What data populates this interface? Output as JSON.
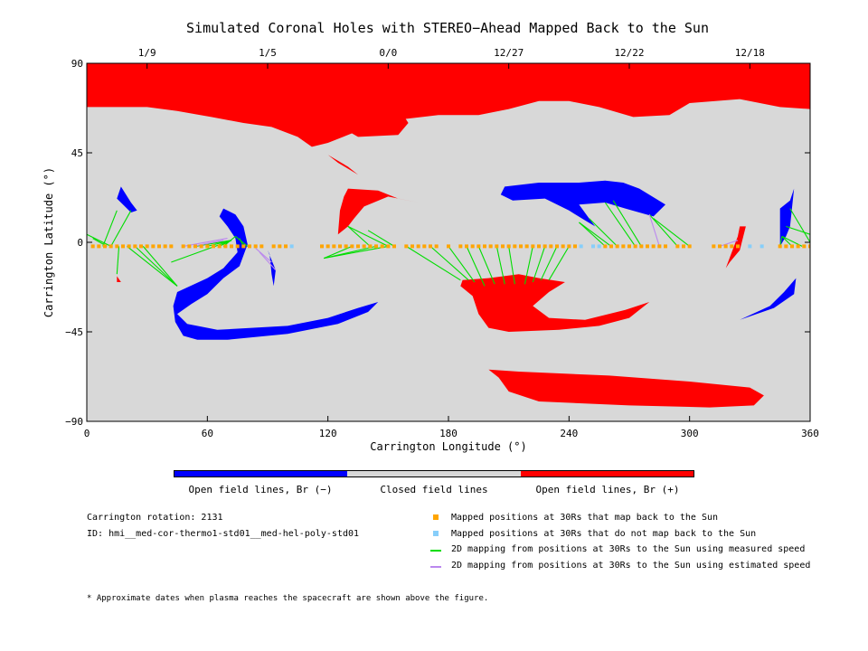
{
  "chart_data": {
    "type": "map",
    "title": "Simulated Coronal Holes with STEREO−Ahead Mapped Back to the Sun",
    "xlabel": "Carrington Longitude (°)",
    "ylabel": "Carrington Latitude (°)",
    "xlim": [
      0,
      360
    ],
    "ylim": [
      -90,
      90
    ],
    "x_ticks": [
      0,
      60,
      120,
      180,
      240,
      300,
      360
    ],
    "y_ticks": [
      90,
      45,
      0,
      -45,
      -90
    ],
    "y_tick_labels": [
      "90",
      "45",
      "0",
      "−45",
      "−90"
    ],
    "top_date_ticks": [
      {
        "lon": 30,
        "label": "1/9"
      },
      {
        "lon": 90,
        "label": "1/5"
      },
      {
        "lon": 150,
        "label": "0/0"
      },
      {
        "lon": 210,
        "label": "12/27"
      },
      {
        "lon": 270,
        "label": "12/22"
      },
      {
        "lon": 330,
        "label": "12/18"
      }
    ],
    "colors": {
      "closed": "#d8d8d8",
      "open_negative": "#0000ff",
      "open_positive": "#ff0000",
      "mapped_back": "#ffa500",
      "not_mapped_back": "#87cefa",
      "measured_speed": "#00dd00",
      "estimated_speed": "#bb88ee"
    },
    "regions": {
      "positive": [
        [
          [
            0,
            90
          ],
          [
            360,
            90
          ],
          [
            360,
            67
          ],
          [
            345,
            68
          ],
          [
            325,
            72
          ],
          [
            300,
            70
          ],
          [
            290,
            64
          ],
          [
            272,
            63
          ],
          [
            255,
            68
          ],
          [
            240,
            71
          ],
          [
            225,
            71
          ],
          [
            210,
            67
          ],
          [
            195,
            64
          ],
          [
            175,
            64
          ],
          [
            150,
            61
          ],
          [
            135,
            56
          ],
          [
            120,
            50
          ],
          [
            112,
            48
          ],
          [
            105,
            53
          ],
          [
            92,
            58
          ],
          [
            78,
            60
          ],
          [
            62,
            63
          ],
          [
            45,
            66
          ],
          [
            30,
            68
          ],
          [
            10,
            68
          ],
          [
            0,
            68
          ]
        ],
        [
          [
            305,
            90
          ],
          [
            360,
            90
          ],
          [
            360,
            70
          ],
          [
            350,
            72
          ],
          [
            335,
            75
          ],
          [
            315,
            78
          ]
        ],
        [
          [
            135,
            53
          ],
          [
            155,
            54
          ],
          [
            160,
            60
          ],
          [
            155,
            68
          ],
          [
            135,
            71
          ],
          [
            125,
            67
          ],
          [
            123,
            60
          ]
        ],
        [
          [
            130,
            27
          ],
          [
            145,
            26
          ],
          [
            155,
            22
          ],
          [
            165,
            20
          ],
          [
            150,
            23
          ],
          [
            138,
            18
          ],
          [
            133,
            12
          ],
          [
            130,
            8
          ],
          [
            125,
            4
          ],
          [
            126,
            16
          ],
          [
            128,
            23
          ]
        ],
        [
          [
            120,
            44
          ],
          [
            130,
            38
          ],
          [
            135,
            34
          ],
          [
            125,
            40
          ]
        ],
        [
          [
            187,
            -19
          ],
          [
            200,
            -18
          ],
          [
            215,
            -16
          ],
          [
            225,
            -18
          ],
          [
            238,
            -20
          ],
          [
            230,
            -25
          ],
          [
            222,
            -32
          ],
          [
            230,
            -38
          ],
          [
            248,
            -39
          ],
          [
            268,
            -34
          ],
          [
            280,
            -30
          ],
          [
            270,
            -38
          ],
          [
            255,
            -42
          ],
          [
            235,
            -44
          ],
          [
            210,
            -45
          ],
          [
            200,
            -43
          ],
          [
            195,
            -36
          ],
          [
            192,
            -27
          ],
          [
            186,
            -22
          ]
        ],
        [
          [
            325,
            8
          ],
          [
            328,
            8
          ],
          [
            325,
            -4
          ],
          [
            320,
            -10
          ],
          [
            318,
            -13
          ],
          [
            321,
            -5
          ],
          [
            324,
            3
          ]
        ],
        [
          [
            200,
            -64
          ],
          [
            215,
            -65
          ],
          [
            260,
            -67
          ],
          [
            300,
            -70
          ],
          [
            330,
            -73
          ],
          [
            337,
            -77
          ],
          [
            332,
            -82
          ],
          [
            310,
            -83
          ],
          [
            270,
            -82
          ],
          [
            225,
            -80
          ],
          [
            210,
            -75
          ],
          [
            205,
            -68
          ]
        ],
        [
          [
            15,
            -17
          ],
          [
            17,
            -20
          ],
          [
            15,
            -20
          ]
        ]
      ],
      "negative": [
        [
          [
            45,
            -25
          ],
          [
            60,
            -18
          ],
          [
            68,
            -13
          ],
          [
            75,
            -5
          ],
          [
            74,
            2
          ],
          [
            70,
            8
          ],
          [
            66,
            13
          ],
          [
            68,
            17
          ],
          [
            74,
            14
          ],
          [
            78,
            8
          ],
          [
            80,
            -1
          ],
          [
            76,
            -12
          ],
          [
            68,
            -18
          ],
          [
            60,
            -26
          ],
          [
            52,
            -31
          ],
          [
            45,
            -36
          ],
          [
            50,
            -41
          ],
          [
            65,
            -44
          ],
          [
            100,
            -42
          ],
          [
            120,
            -38
          ],
          [
            135,
            -33
          ],
          [
            145,
            -30
          ],
          [
            140,
            -35
          ],
          [
            125,
            -41
          ],
          [
            100,
            -46
          ],
          [
            70,
            -49
          ],
          [
            55,
            -49
          ],
          [
            48,
            -47
          ],
          [
            44,
            -40
          ],
          [
            43,
            -32
          ]
        ],
        [
          [
            208,
            28
          ],
          [
            225,
            30
          ],
          [
            245,
            30
          ],
          [
            258,
            31
          ],
          [
            267,
            30
          ],
          [
            275,
            27
          ],
          [
            288,
            19
          ],
          [
            282,
            13
          ],
          [
            275,
            15
          ],
          [
            268,
            17
          ],
          [
            258,
            20
          ],
          [
            245,
            19
          ],
          [
            250,
            12
          ],
          [
            253,
            8
          ],
          [
            248,
            11
          ],
          [
            240,
            16
          ],
          [
            228,
            22
          ],
          [
            212,
            21
          ],
          [
            206,
            24
          ]
        ],
        [
          [
            17,
            28
          ],
          [
            22,
            20
          ],
          [
            25,
            16
          ],
          [
            22,
            15
          ],
          [
            15,
            22
          ]
        ],
        [
          [
            345,
            17
          ],
          [
            350,
            21
          ],
          [
            352,
            27
          ],
          [
            350,
            8
          ],
          [
            348,
            3
          ],
          [
            345,
            -2
          ],
          [
            345,
            9
          ]
        ],
        [
          [
            325,
            -39
          ],
          [
            342,
            -33
          ],
          [
            352,
            -26
          ],
          [
            353,
            -18
          ],
          [
            347,
            -25
          ],
          [
            340,
            -32
          ],
          [
            327,
            -38
          ]
        ],
        [
          [
            90,
            -4
          ],
          [
            94,
            -14
          ],
          [
            93,
            -22
          ],
          [
            92,
            -16
          ],
          [
            91,
            -6
          ]
        ]
      ]
    },
    "mapped_points": [
      3,
      6,
      9,
      12,
      15,
      18,
      21,
      24,
      27,
      30,
      33,
      36,
      39,
      42,
      48,
      51,
      54,
      57,
      60,
      63,
      66,
      69,
      72,
      75,
      78,
      81,
      84,
      87,
      93,
      96,
      99,
      117,
      120,
      123,
      126,
      129,
      132,
      135,
      138,
      141,
      144,
      147,
      150,
      153,
      159,
      162,
      165,
      168,
      171,
      174,
      180,
      186,
      189,
      192,
      195,
      198,
      201,
      204,
      207,
      210,
      213,
      216,
      219,
      222,
      225,
      228,
      231,
      234,
      237,
      240,
      243,
      258,
      261,
      264,
      267,
      270,
      273,
      276,
      279,
      282,
      285,
      288,
      294,
      297,
      300,
      312,
      315,
      318,
      321,
      324,
      345,
      348,
      351,
      354,
      357,
      360
    ],
    "not_mapped_points": [
      102,
      246,
      252,
      255,
      330,
      336
    ],
    "measured_lines": [
      [
        [
          3,
          2
        ],
        [
          10,
          -2
        ]
      ],
      [
        [
          0,
          4
        ],
        [
          12,
          -2
        ]
      ],
      [
        [
          15,
          16
        ],
        [
          8,
          -2
        ]
      ],
      [
        [
          22,
          16
        ],
        [
          12,
          -2
        ]
      ],
      [
        [
          15,
          -16
        ],
        [
          16,
          -2
        ]
      ],
      [
        [
          45,
          -22
        ],
        [
          24,
          -2
        ]
      ],
      [
        [
          45,
          -22
        ],
        [
          28,
          -2
        ]
      ],
      [
        [
          45,
          -22
        ],
        [
          20,
          -2
        ]
      ],
      [
        [
          72,
          1
        ],
        [
          54,
          -2
        ]
      ],
      [
        [
          72,
          1
        ],
        [
          60,
          -2
        ]
      ],
      [
        [
          72,
          1
        ],
        [
          66,
          -2
        ]
      ],
      [
        [
          72,
          1
        ],
        [
          42,
          -10
        ]
      ],
      [
        [
          74,
          3
        ],
        [
          68,
          -2
        ]
      ],
      [
        [
          74,
          3
        ],
        [
          80,
          -2
        ]
      ],
      [
        [
          76,
          2
        ],
        [
          78,
          -2
        ]
      ],
      [
        [
          118,
          -8
        ],
        [
          132,
          -2
        ]
      ],
      [
        [
          118,
          -8
        ],
        [
          144,
          -2
        ]
      ],
      [
        [
          118,
          -8
        ],
        [
          150,
          -2
        ]
      ],
      [
        [
          130,
          8
        ],
        [
          141,
          -2
        ]
      ],
      [
        [
          130,
          8
        ],
        [
          150,
          -2
        ]
      ],
      [
        [
          140,
          6
        ],
        [
          153,
          -2
        ]
      ],
      [
        [
          186,
          -19
        ],
        [
          159,
          -2
        ]
      ],
      [
        [
          190,
          -19
        ],
        [
          171,
          -2
        ]
      ],
      [
        [
          193,
          -20
        ],
        [
          180,
          -2
        ]
      ],
      [
        [
          198,
          -22
        ],
        [
          189,
          -2
        ]
      ],
      [
        [
          203,
          -21
        ],
        [
          195,
          -2
        ]
      ],
      [
        [
          208,
          -21
        ],
        [
          204,
          -2
        ]
      ],
      [
        [
          213,
          -21
        ],
        [
          210,
          -2
        ]
      ],
      [
        [
          218,
          -21
        ],
        [
          222,
          -2
        ]
      ],
      [
        [
          222,
          -20
        ],
        [
          228,
          -2
        ]
      ],
      [
        [
          226,
          -19
        ],
        [
          234,
          -2
        ]
      ],
      [
        [
          230,
          -19
        ],
        [
          240,
          -2
        ]
      ],
      [
        [
          245,
          10
        ],
        [
          258,
          -2
        ]
      ],
      [
        [
          245,
          10
        ],
        [
          261,
          -2
        ]
      ],
      [
        [
          250,
          12
        ],
        [
          264,
          -2
        ]
      ],
      [
        [
          258,
          20
        ],
        [
          273,
          -2
        ]
      ],
      [
        [
          262,
          21
        ],
        [
          276,
          -2
        ]
      ],
      [
        [
          280,
          14
        ],
        [
          294,
          -2
        ]
      ],
      [
        [
          282,
          12
        ],
        [
          300,
          -2
        ]
      ],
      [
        [
          346,
          3
        ],
        [
          345,
          -2
        ]
      ],
      [
        [
          346,
          3
        ],
        [
          351,
          -2
        ]
      ],
      [
        [
          346,
          3
        ],
        [
          356,
          -2
        ]
      ],
      [
        [
          348,
          8
        ],
        [
          360,
          4
        ]
      ],
      [
        [
          350,
          17
        ],
        [
          360,
          0
        ]
      ]
    ],
    "estimated_lines": [
      [
        [
          70,
          2
        ],
        [
          48,
          -2
        ]
      ],
      [
        [
          68,
          1
        ],
        [
          53,
          -2
        ]
      ],
      [
        [
          86,
          -5
        ],
        [
          94,
          -14
        ]
      ],
      [
        [
          84,
          -3
        ],
        [
          92,
          -10
        ]
      ],
      [
        [
          280,
          14
        ],
        [
          285,
          -2
        ]
      ],
      [
        [
          315,
          -2
        ],
        [
          324,
          1
        ]
      ]
    ],
    "colorbar": {
      "labels": [
        "Open field lines, Br (−)",
        "Closed field lines",
        "Open field lines, Br (+)"
      ],
      "colors": [
        "#0000ff",
        "#d8d8d8",
        "#ff0000"
      ]
    }
  },
  "info": {
    "rotation": "Carrington rotation: 2131",
    "id": "ID: hmi__med-cor-thermo1-std01__med-hel-poly-std01"
  },
  "legend": [
    {
      "kind": "point",
      "color": "#ffa500",
      "label": "Mapped positions at 30Rs that map back to the Sun"
    },
    {
      "kind": "point",
      "color": "#87cefa",
      "label": "Mapped positions at 30Rs that do not map back to the Sun"
    },
    {
      "kind": "line",
      "color": "#00dd00",
      "label": "2D mapping from positions at 30Rs to the Sun using measured speed"
    },
    {
      "kind": "line",
      "color": "#bb88ee",
      "label": "2D mapping from positions at 30Rs to the Sun using estimated speed"
    }
  ],
  "footnote": "* Approximate dates when plasma reaches the spacecraft are shown above the figure."
}
